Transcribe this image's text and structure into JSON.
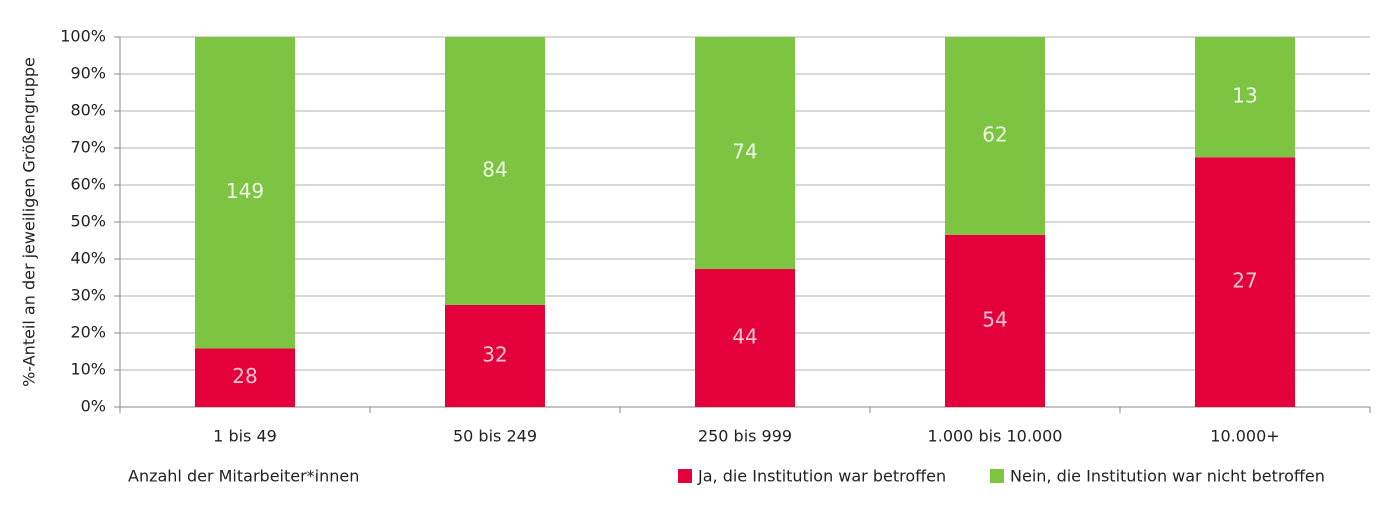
{
  "chart_data": {
    "type": "bar",
    "stacking": "percent",
    "y_label": "%-Anteil an der jeweiligen Größengruppe",
    "x_label": "Anzahl der Mitarbeiter*innen",
    "categories": [
      "1 bis 49",
      "50 bis 249",
      "250 bis 999",
      "1.000 bis 10.000",
      "10.000+"
    ],
    "series": [
      {
        "name": "Ja, die Institution war betroffen",
        "color": "#e4003a",
        "values": [
          28,
          32,
          44,
          54,
          27
        ]
      },
      {
        "name": "Nein, die Institution war nicht betroffen",
        "color": "#7dc443",
        "values": [
          149,
          84,
          74,
          62,
          13
        ]
      }
    ],
    "ylim": [
      0,
      100
    ],
    "yticks": [
      {
        "value": 0,
        "label": "0%"
      },
      {
        "value": 10,
        "label": "10%"
      },
      {
        "value": 20,
        "label": "20%"
      },
      {
        "value": 30,
        "label": "30%"
      },
      {
        "value": 40,
        "label": "40%"
      },
      {
        "value": 50,
        "label": "50%"
      },
      {
        "value": 60,
        "label": "60%"
      },
      {
        "value": 70,
        "label": "70%"
      },
      {
        "value": 80,
        "label": "80%"
      },
      {
        "value": 90,
        "label": "90%"
      },
      {
        "value": 100,
        "label": "100%"
      }
    ],
    "grid": true
  }
}
